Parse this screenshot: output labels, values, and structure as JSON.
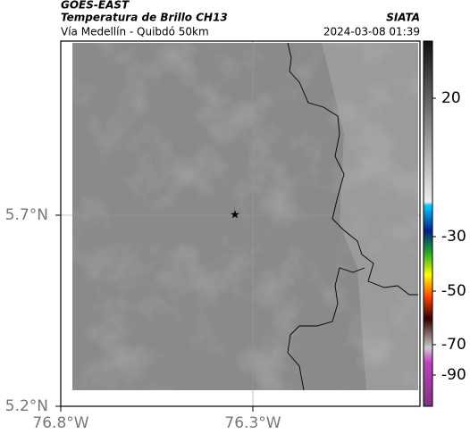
{
  "header": {
    "source": "GOES-EAST",
    "title": "Temperatura de Brillo CH13",
    "subtitle": "Vía Medellín - Quibdó 50km",
    "organization": "SIATA",
    "timestamp": "2024-03-08 01:39"
  },
  "axes": {
    "y_labels": [
      "5.7°N",
      "5.2°N"
    ],
    "x_labels": [
      "76.8°W",
      "76.3°W"
    ]
  },
  "colorbar": {
    "ticks": [
      20,
      -30,
      -50,
      -70,
      -90
    ]
  }
}
